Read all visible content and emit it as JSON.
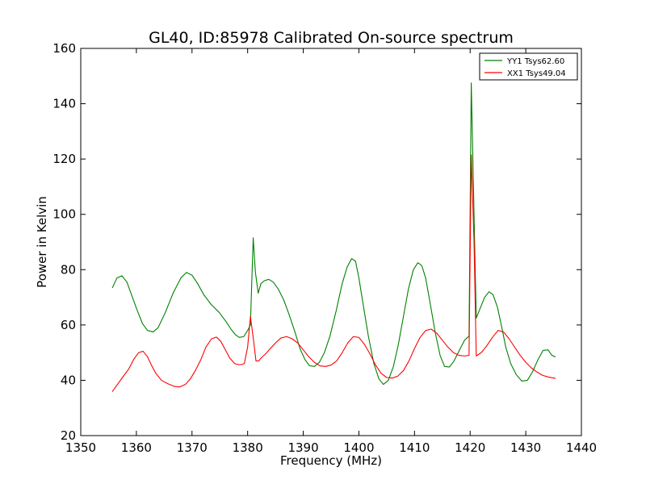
{
  "chart_data": {
    "type": "line",
    "title": "GL40, ID:85978 Calibrated On-source spectrum",
    "xlabel": "Frequency (MHz)",
    "ylabel": "Power in Kelvin",
    "xlim": [
      1350,
      1440
    ],
    "ylim": [
      20,
      160
    ],
    "xticks": [
      "1350",
      "1360",
      "1370",
      "1380",
      "1390",
      "1400",
      "1410",
      "1420",
      "1430",
      "1440"
    ],
    "yticks": [
      "20",
      "40",
      "60",
      "80",
      "100",
      "120",
      "140",
      "160"
    ],
    "grid": false,
    "legend_position": "top-right",
    "series": [
      {
        "name": "YY1 Tsys62.60",
        "color": "#008000",
        "x": [
          1355.7,
          1356.5,
          1357.4,
          1358.3,
          1359.2,
          1360.2,
          1361.1,
          1362.0,
          1363.0,
          1363.9,
          1365.2,
          1366.6,
          1368.0,
          1369.0,
          1370.0,
          1371.0,
          1372.1,
          1373.4,
          1374.9,
          1376.2,
          1377.0,
          1377.8,
          1378.5,
          1379.3,
          1380.0,
          1380.5,
          1381.0,
          1381.4,
          1381.9,
          1382.4,
          1383.0,
          1383.8,
          1384.6,
          1385.5,
          1386.5,
          1387.5,
          1388.5,
          1389.4,
          1390.3,
          1391.1,
          1392.0,
          1392.9,
          1393.8,
          1394.8,
          1395.9,
          1397.0,
          1397.9,
          1398.7,
          1399.4,
          1400.0,
          1400.8,
          1401.7,
          1402.7,
          1403.6,
          1404.4,
          1405.3,
          1406.2,
          1407.1,
          1408.0,
          1408.9,
          1409.8,
          1410.6,
          1411.3,
          1412.0,
          1412.8,
          1413.7,
          1414.6,
          1415.4,
          1416.3,
          1417.1,
          1418.1,
          1419.0,
          1419.8,
          1420.2,
          1420.7,
          1421.1,
          1421.8,
          1422.6,
          1423.4,
          1424.1,
          1424.9,
          1425.6,
          1426.4,
          1427.3,
          1428.3,
          1429.3,
          1430.3,
          1431.2,
          1432.2,
          1433.1,
          1434.0,
          1434.7,
          1435.3
        ],
        "values": [
          73.5,
          77.0,
          77.8,
          75.5,
          70.5,
          65.0,
          60.5,
          58.0,
          57.5,
          59.0,
          64.5,
          71.5,
          77.0,
          79.0,
          78.0,
          75.0,
          71.0,
          67.5,
          64.5,
          61.0,
          58.5,
          56.5,
          55.5,
          55.8,
          58.0,
          60.0,
          91.5,
          79.0,
          71.5,
          75.0,
          76.0,
          76.5,
          75.5,
          73.0,
          69.0,
          63.5,
          57.5,
          51.5,
          47.5,
          45.3,
          45.0,
          46.5,
          50.0,
          56.0,
          65.0,
          75.0,
          81.0,
          84.0,
          83.0,
          77.0,
          67.0,
          56.0,
          46.0,
          40.5,
          38.5,
          40.0,
          45.0,
          53.0,
          63.0,
          73.0,
          80.0,
          82.5,
          81.5,
          77.0,
          68.0,
          57.5,
          49.0,
          45.0,
          44.8,
          47.0,
          51.0,
          54.5,
          56.0,
          147.5,
          100.0,
          62.5,
          66.0,
          70.0,
          72.0,
          71.0,
          66.5,
          60.0,
          52.0,
          46.0,
          42.0,
          39.7,
          40.0,
          43.0,
          47.5,
          50.8,
          51.0,
          49.0,
          48.5
        ]
      },
      {
        "name": "XX1 Tsys49.04",
        "color": "#ff0000",
        "x": [
          1355.7,
          1356.6,
          1357.5,
          1358.6,
          1359.5,
          1360.4,
          1361.2,
          1362.0,
          1362.7,
          1363.5,
          1364.5,
          1365.6,
          1366.8,
          1367.8,
          1368.8,
          1369.7,
          1370.6,
          1371.6,
          1372.5,
          1373.5,
          1374.4,
          1375.2,
          1376.0,
          1376.8,
          1377.7,
          1378.6,
          1379.4,
          1380.0,
          1380.5,
          1381.0,
          1381.5,
          1382.0,
          1382.4,
          1383.2,
          1384.1,
          1385.0,
          1386.0,
          1387.0,
          1388.0,
          1389.0,
          1390.0,
          1391.0,
          1392.0,
          1393.0,
          1394.0,
          1395.0,
          1396.0,
          1397.0,
          1398.0,
          1399.0,
          1400.0,
          1401.0,
          1402.0,
          1403.0,
          1404.0,
          1405.0,
          1406.0,
          1407.0,
          1408.0,
          1409.0,
          1410.0,
          1411.0,
          1412.0,
          1413.0,
          1414.0,
          1415.0,
          1416.0,
          1417.0,
          1418.0,
          1419.0,
          1419.8,
          1420.2,
          1420.7,
          1421.1,
          1422.0,
          1423.0,
          1424.0,
          1425.0,
          1426.0,
          1427.0,
          1428.0,
          1429.0,
          1430.0,
          1431.0,
          1432.0,
          1433.0,
          1434.0,
          1435.3
        ],
        "values": [
          36.0,
          38.5,
          41.0,
          44.0,
          47.5,
          50.0,
          50.5,
          48.5,
          45.5,
          42.5,
          40.0,
          38.8,
          37.8,
          37.6,
          38.5,
          40.5,
          43.5,
          47.5,
          52.0,
          55.0,
          55.6,
          54.0,
          51.0,
          48.0,
          46.0,
          45.6,
          46.0,
          52.0,
          63.0,
          55.5,
          47.0,
          47.0,
          48.0,
          49.5,
          51.5,
          53.5,
          55.3,
          55.8,
          55.0,
          53.5,
          51.0,
          48.5,
          46.5,
          45.2,
          45.0,
          45.5,
          47.0,
          50.0,
          53.5,
          55.8,
          55.5,
          53.0,
          49.5,
          45.5,
          42.5,
          41.0,
          40.8,
          41.5,
          43.5,
          47.0,
          51.5,
          55.5,
          58.0,
          58.5,
          57.0,
          54.5,
          52.0,
          50.0,
          49.0,
          48.8,
          49.0,
          121.5,
          90.0,
          48.8,
          50.0,
          52.5,
          55.5,
          58.0,
          57.5,
          55.0,
          52.0,
          49.0,
          46.5,
          44.5,
          43.0,
          41.8,
          41.2,
          40.7
        ]
      }
    ]
  }
}
